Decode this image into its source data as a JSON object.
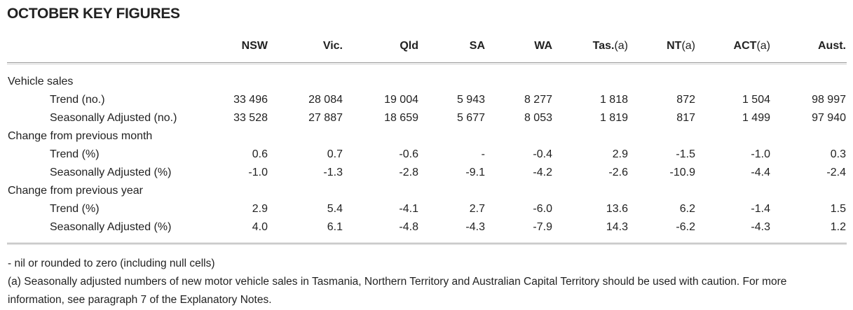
{
  "title": "OCTOBER KEY FIGURES",
  "columns": [
    {
      "label": "NSW",
      "suffix": ""
    },
    {
      "label": "Vic.",
      "suffix": ""
    },
    {
      "label": "Qld",
      "suffix": ""
    },
    {
      "label": "SA",
      "suffix": ""
    },
    {
      "label": "WA",
      "suffix": ""
    },
    {
      "label": "Tas.",
      "suffix": "(a)"
    },
    {
      "label": "NT",
      "suffix": "(a)"
    },
    {
      "label": "ACT",
      "suffix": "(a)"
    },
    {
      "label": "Aust.",
      "suffix": ""
    }
  ],
  "rows": [
    {
      "label": "Vehicle sales",
      "type": "section",
      "values": []
    },
    {
      "label": "Trend (no.)",
      "type": "sub",
      "values": [
        "33 496",
        "28 084",
        "19 004",
        "5 943",
        "8 277",
        "1 818",
        "872",
        "1 504",
        "98 997"
      ]
    },
    {
      "label": "Seasonally Adjusted (no.)",
      "type": "sub",
      "values": [
        "33 528",
        "27 887",
        "18 659",
        "5 677",
        "8 053",
        "1 819",
        "817",
        "1 499",
        "97 940"
      ]
    },
    {
      "label": "Change from previous month",
      "type": "section",
      "values": []
    },
    {
      "label": "Trend (%)",
      "type": "sub",
      "values": [
        "0.6",
        "0.7",
        "-0.6",
        "-",
        "-0.4",
        "2.9",
        "-1.5",
        "-1.0",
        "0.3"
      ]
    },
    {
      "label": "Seasonally Adjusted (%)",
      "type": "sub",
      "values": [
        "-1.0",
        "-1.3",
        "-2.8",
        "-9.1",
        "-4.2",
        "-2.6",
        "-10.9",
        "-4.4",
        "-2.4"
      ]
    },
    {
      "label": "Change from previous year",
      "type": "section",
      "values": []
    },
    {
      "label": "Trend (%)",
      "type": "sub",
      "values": [
        "2.9",
        "5.4",
        "-4.1",
        "2.7",
        "-6.0",
        "13.6",
        "6.2",
        "-1.4",
        "1.5"
      ]
    },
    {
      "label": "Seasonally Adjusted (%)",
      "type": "sub",
      "values": [
        "4.0",
        "6.1",
        "-4.8",
        "-4.3",
        "-7.9",
        "14.3",
        "-6.2",
        "-4.3",
        "1.2"
      ]
    }
  ],
  "footnotes": [
    "- nil or rounded to zero (including null cells)",
    "(a) Seasonally adjusted numbers of new motor vehicle sales in Tasmania, Northern Territory and Australian Capital Territory should be used with caution. For more information, see paragraph 7 of the Explanatory Notes."
  ]
}
